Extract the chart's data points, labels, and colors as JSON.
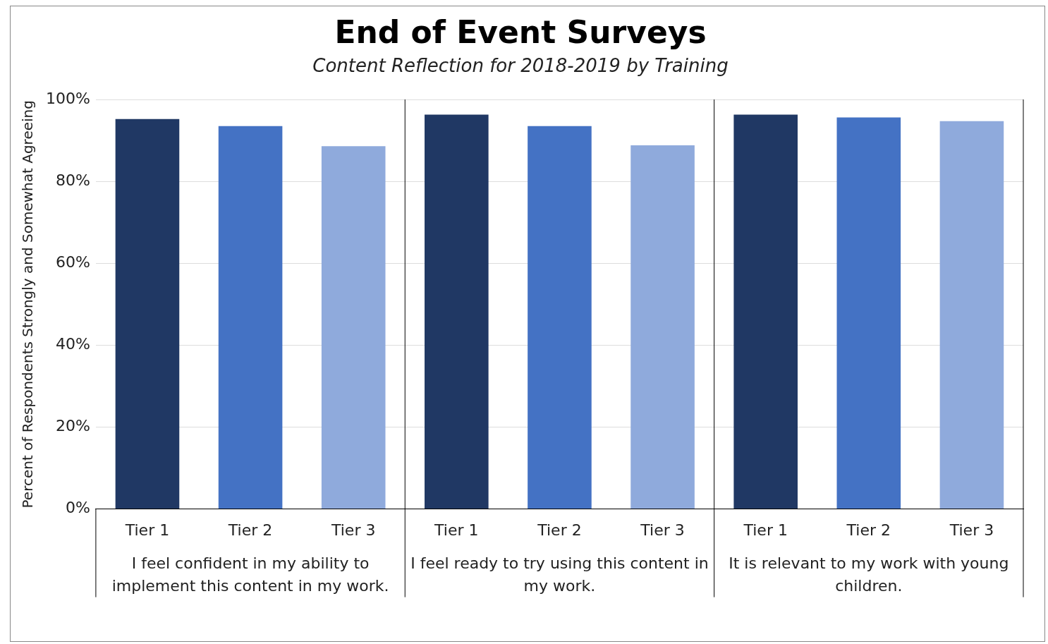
{
  "chart_data": {
    "type": "bar",
    "title": "End of Event Surveys",
    "subtitle": "Content Reflection for 2018-2019 by Training",
    "ylabel": "Percent of Respondents Strongly and Somewhat Agreeing",
    "categories": [
      "Tier 1",
      "Tier 2",
      "Tier 3",
      "Tier 1",
      "Tier 2",
      "Tier 3",
      "Tier 1",
      "Tier 2",
      "Tier 3"
    ],
    "values": [
      95.2,
      93.5,
      88.6,
      96.3,
      93.5,
      88.8,
      96.3,
      95.6,
      94.7
    ],
    "colors": [
      "#203864",
      "#4472c4",
      "#8faadc",
      "#203864",
      "#4472c4",
      "#8faadc",
      "#203864",
      "#4472c4",
      "#8faadc"
    ],
    "ylim": [
      0,
      100
    ],
    "yticks": [
      {
        "value": 0,
        "label": "0%"
      },
      {
        "value": 20,
        "label": "20%"
      },
      {
        "value": 40,
        "label": "40%"
      },
      {
        "value": 60,
        "label": "60%"
      },
      {
        "value": 80,
        "label": "80%"
      },
      {
        "value": 100,
        "label": "100%"
      }
    ],
    "grid": "y",
    "annotations": [
      "I feel confident in my ability to implement this content in my work.",
      "I feel ready to try using this content in my work.",
      "It is relevant to my work with young children."
    ]
  }
}
